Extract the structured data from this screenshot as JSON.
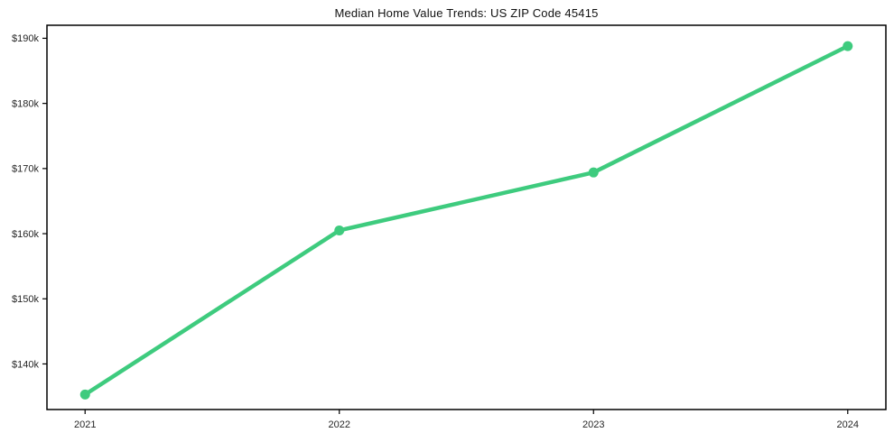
{
  "page": {
    "background": "#ffffff"
  },
  "chart_data": {
    "type": "line",
    "title": "Median Home Value Trends: US ZIP Code 45415",
    "xlabel": "",
    "ylabel": "",
    "x": [
      2021,
      2022,
      2023,
      2024
    ],
    "values": [
      135300,
      160500,
      169400,
      188800
    ],
    "x_ticks": [
      {
        "value": 2021,
        "label": "2021"
      },
      {
        "value": 2022,
        "label": "2022"
      },
      {
        "value": 2023,
        "label": "2023"
      },
      {
        "value": 2024,
        "label": "2024"
      }
    ],
    "y_ticks": [
      {
        "value": 140000,
        "label": "$140k"
      },
      {
        "value": 150000,
        "label": "$150k"
      },
      {
        "value": 160000,
        "label": "$160k"
      },
      {
        "value": 170000,
        "label": "$170k"
      },
      {
        "value": 180000,
        "label": "$180k"
      },
      {
        "value": 190000,
        "label": "$190k"
      }
    ],
    "xlim": [
      2020.85,
      2024.15
    ],
    "ylim": [
      133000,
      192000
    ],
    "grid": false,
    "legend": "none",
    "line_color": "#3ecb7e",
    "line_width": 4.5,
    "marker": "circle",
    "marker_radius": 5.5,
    "axis_color": "#000000",
    "tick_label_color": "#262626",
    "title_color": "#111111"
  }
}
